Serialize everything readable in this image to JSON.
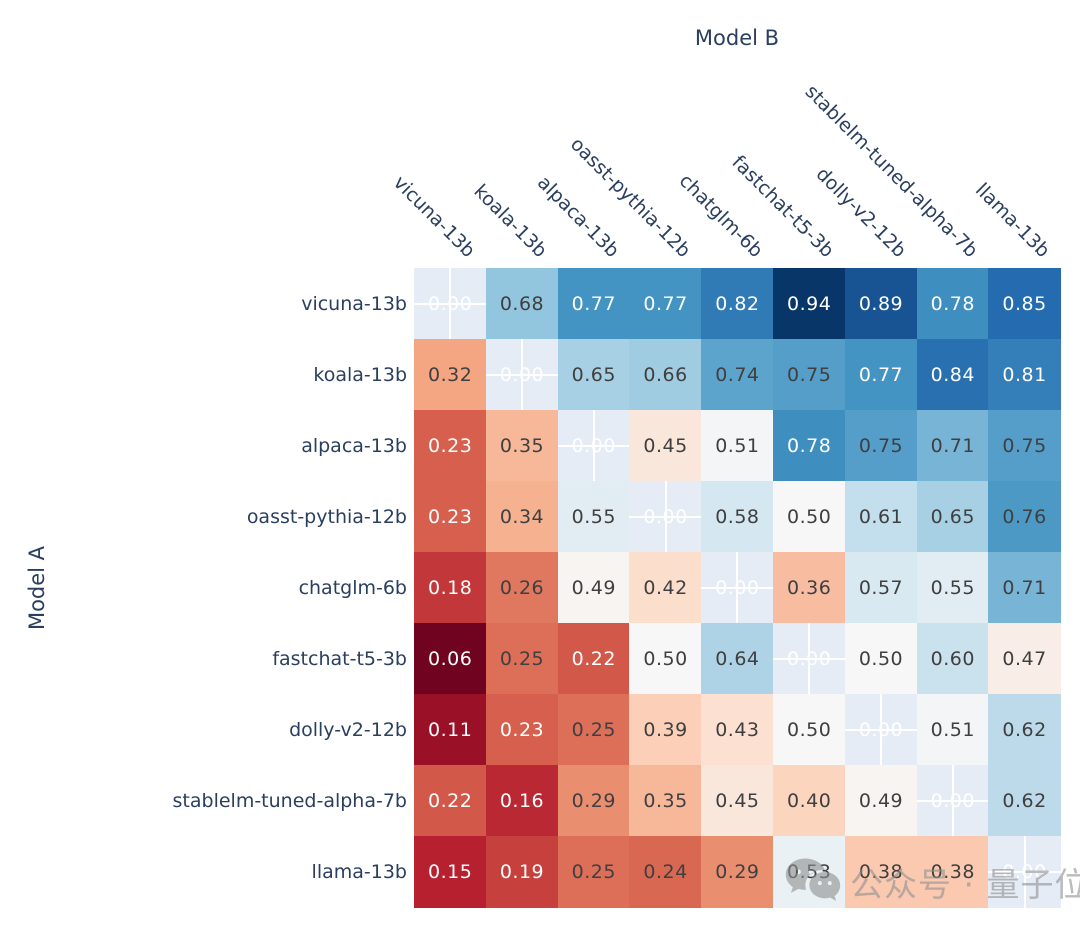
{
  "chart_data": {
    "type": "heatmap",
    "x_axis_title": "Model B",
    "y_axis_title": "Model A",
    "x_categories": [
      "vicuna-13b",
      "koala-13b",
      "alpaca-13b",
      "oasst-pythia-12b",
      "chatglm-6b",
      "fastchat-t5-3b",
      "dolly-v2-12b",
      "stablelm-tuned-alpha-7b",
      "llama-13b"
    ],
    "y_categories": [
      "vicuna-13b",
      "koala-13b",
      "alpaca-13b",
      "oasst-pythia-12b",
      "chatglm-6b",
      "fastchat-t5-3b",
      "dolly-v2-12b",
      "stablelm-tuned-alpha-7b",
      "llama-13b"
    ],
    "values": [
      [
        null,
        0.68,
        0.77,
        0.77,
        0.82,
        0.94,
        0.89,
        0.78,
        0.85
      ],
      [
        0.32,
        null,
        0.65,
        0.66,
        0.74,
        0.75,
        0.77,
        0.84,
        0.81
      ],
      [
        0.23,
        0.35,
        null,
        0.45,
        0.51,
        0.78,
        0.75,
        0.71,
        0.75
      ],
      [
        0.23,
        0.34,
        0.55,
        null,
        0.58,
        0.5,
        0.61,
        0.65,
        0.76
      ],
      [
        0.18,
        0.26,
        0.49,
        0.42,
        null,
        0.36,
        0.57,
        0.55,
        0.71
      ],
      [
        0.06,
        0.25,
        0.22,
        0.5,
        0.64,
        null,
        0.5,
        0.6,
        0.47
      ],
      [
        0.11,
        0.23,
        0.25,
        0.39,
        0.43,
        0.5,
        null,
        0.51,
        0.62
      ],
      [
        0.22,
        0.16,
        0.29,
        0.35,
        0.45,
        0.4,
        0.49,
        null,
        0.62
      ],
      [
        0.15,
        0.19,
        0.25,
        0.24,
        0.29,
        0.53,
        0.38,
        0.38,
        null
      ]
    ],
    "diagonal_text": "0.00",
    "colorscale": [
      "#67001f",
      "#b2182b",
      "#d6604d",
      "#f4a582",
      "#fddbc7",
      "#f7f7f7",
      "#d1e5f0",
      "#92c5de",
      "#4393c3",
      "#2166ac",
      "#053061"
    ],
    "color_domain": [
      0.05,
      0.95
    ],
    "zlim": [
      0,
      1
    ],
    "diagonal_bg": "#E5ECF6",
    "grid_color": "#ffffff",
    "label_color": "#2a3f5f",
    "text_colors": {
      "light": "#ffffff",
      "dark": "#3f3f3f"
    },
    "legend_position": "none",
    "grid": "off"
  },
  "watermark": {
    "icon": "wechat-icon",
    "text": "公众号 · 量子位",
    "color": "#8f8f8f"
  }
}
